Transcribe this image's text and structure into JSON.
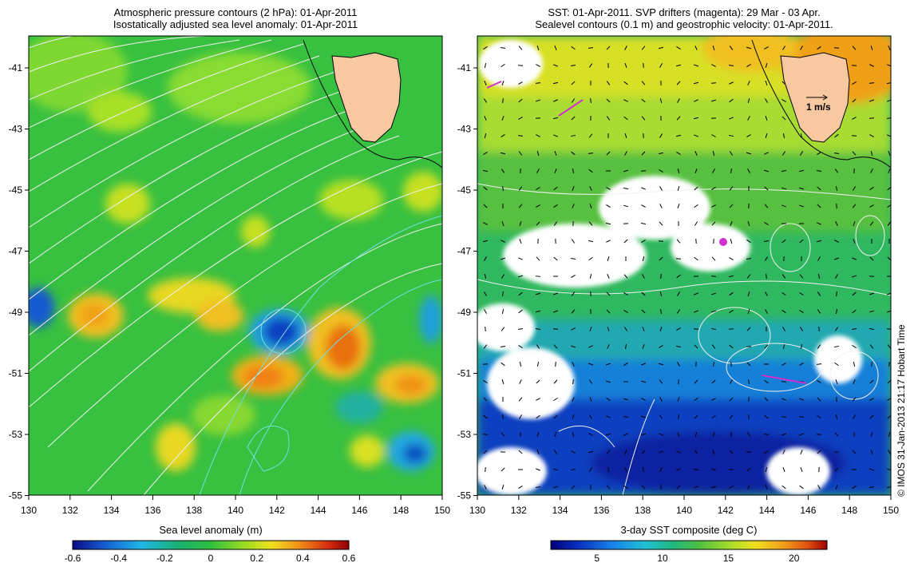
{
  "left_panel": {
    "title_line1": "Atmospheric pressure contours (2 hPa): 01-Apr-2011",
    "title_line2": "Isostatically adjusted sea level anomaly: 01-Apr-2011",
    "x_ticks": [
      "130",
      "132",
      "134",
      "136",
      "138",
      "140",
      "142",
      "144",
      "146",
      "148",
      "150"
    ],
    "y_ticks": [
      "-41",
      "-43",
      "-45",
      "-47",
      "-49",
      "-51",
      "-53",
      "-55"
    ],
    "colorbar_label": "Sea level anomaly (m)",
    "colorbar_ticks": [
      "-0.6",
      "-0.4",
      "-0.2",
      "0",
      "0.2",
      "0.4",
      "0.6"
    ],
    "colorbar_colors": [
      "#0a0a8a",
      "#1560d0",
      "#20b8e8",
      "#18b070",
      "#30c040",
      "#98dc20",
      "#f0e020",
      "#f09018",
      "#d83010",
      "#900000"
    ]
  },
  "right_panel": {
    "title_line1": "SST: 01-Apr-2011. SVP drifters (magenta): 29 Mar - 03 Apr.",
    "title_line2": "Sealevel contours (0.1 m) and geostrophic velocity: 01-Apr-2011.",
    "x_ticks": [
      "130",
      "132",
      "134",
      "136",
      "138",
      "140",
      "142",
      "144",
      "146",
      "148",
      "150"
    ],
    "y_ticks": [
      "-41",
      "-43",
      "-45",
      "-47",
      "-49",
      "-51",
      "-53",
      "-55"
    ],
    "scale_arrow_label": "1 m/s",
    "colorbar_label": "3-day SST composite (deg C)",
    "colorbar_ticks": [
      "5",
      "10",
      "15",
      "20"
    ],
    "colorbar_colors": [
      "#00007a",
      "#0830c0",
      "#1880e8",
      "#20c0d8",
      "#20b880",
      "#50c040",
      "#b0e028",
      "#f0e020",
      "#f0a018",
      "#e05010",
      "#a00000"
    ]
  },
  "credit": "© IMOS 31-Jan-2013 21:17 Hobart Time",
  "colors": {
    "land": "#f8c8a0",
    "contour_white": "#f0f0f0",
    "contour_cyan": "#70e0e0",
    "drifter": "#d030d0"
  }
}
